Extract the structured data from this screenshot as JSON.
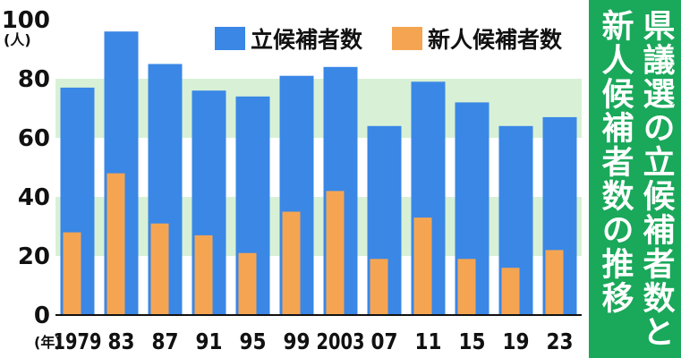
{
  "title": "県議選の立候補者数と\n新人候補者数の推移",
  "colors": {
    "total": "#3a87e6",
    "new": "#f5a552",
    "band": "#d8f1d6",
    "title_bg": "#1aa85a"
  },
  "chart_data": {
    "type": "bar",
    "title": "県議選の立候補者数と\n新人候補者数の推移",
    "categories": [
      "1979",
      "83",
      "87",
      "91",
      "95",
      "99",
      "2003",
      "07",
      "11",
      "15",
      "19",
      "23"
    ],
    "series": [
      {
        "name": "立候補者数",
        "values": [
          77,
          96,
          85,
          76,
          74,
          81,
          84,
          64,
          79,
          72,
          64,
          67
        ]
      },
      {
        "name": "新人候補者数",
        "values": [
          28,
          48,
          31,
          27,
          21,
          35,
          42,
          19,
          33,
          19,
          16,
          22
        ]
      }
    ],
    "ylim": [
      0,
      100
    ],
    "yticks": [
      "0",
      "20",
      "40",
      "60",
      "80",
      "100"
    ],
    "y_unit": "(人)",
    "x_unit": "(年)",
    "grid": "alternating horizontal bands",
    "legend_position": "top-right"
  }
}
